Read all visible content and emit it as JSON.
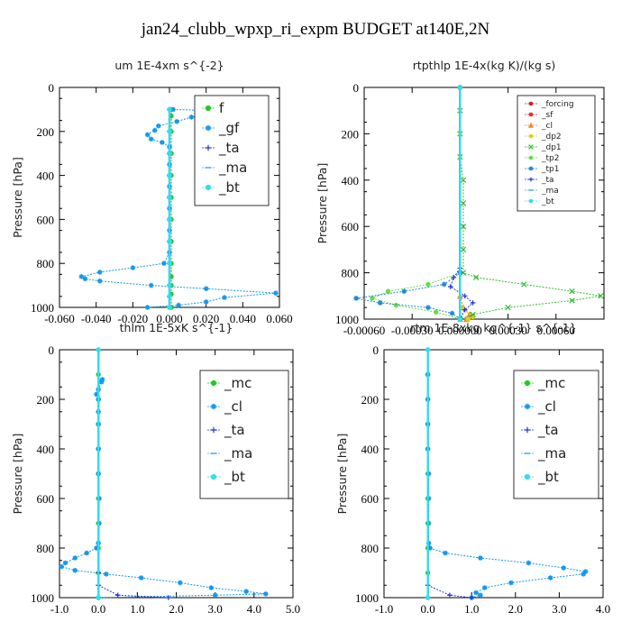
{
  "figure_title": "jan24_clubb_wpxp_ri_expm  BUDGET at140E,2N",
  "chart_data": [
    {
      "type": "line",
      "title": "um   1E-4xm s^{-2}",
      "ylabel": "Pressure [hPa]",
      "xlim": [
        -0.06,
        0.06
      ],
      "ylim": [
        1000,
        0
      ],
      "x_ticks": [
        "-0.060",
        "-0.040",
        "-0.020",
        "0.000",
        "0.020",
        "0.040",
        "0.060"
      ],
      "y_ticks": [
        "0",
        "200",
        "400",
        "600",
        "800",
        "1000"
      ],
      "x_tick_values": [
        -0.06,
        -0.04,
        -0.02,
        0,
        0.02,
        0.04,
        0.06
      ],
      "y_tick_values": [
        0,
        200,
        400,
        600,
        800,
        1000
      ],
      "legend_style": "big",
      "series": [
        {
          "name": "f",
          "color": "#22cc22",
          "marker": "o",
          "pressure": [
            100,
            130,
            200,
            300,
            400,
            500,
            600,
            700,
            800,
            860,
            900,
            940,
            1000
          ],
          "values": [
            0.001,
            0.001,
            0.001,
            0.001,
            0.001,
            0.001,
            0.001,
            0.001,
            0.001,
            0.001,
            0.001,
            0.001,
            0.001
          ]
        },
        {
          "name": "_gf",
          "color": "#1199ee",
          "marker": "*",
          "pressure": [
            100,
            105,
            115,
            125,
            135,
            155,
            175,
            195,
            215,
            235,
            250,
            270,
            300,
            350,
            400,
            450,
            500,
            550,
            600,
            650,
            700,
            750,
            800,
            820,
            840,
            860,
            870,
            880,
            900,
            915,
            935,
            955,
            975,
            990,
            1000
          ],
          "values": [
            0.002,
            0.021,
            0.024,
            0.02,
            0.012,
            0.004,
            -0.006,
            -0.008,
            -0.012,
            -0.01,
            -0.004,
            0.0,
            0.0,
            0.0,
            0.0,
            0.0,
            0.0,
            0.0,
            0.0,
            0.0,
            0.0,
            0.0,
            -0.003,
            -0.02,
            -0.038,
            -0.048,
            -0.046,
            -0.038,
            -0.01,
            0.02,
            0.058,
            0.03,
            0.02,
            0.005,
            -0.012
          ]
        },
        {
          "name": "_ta",
          "color": "#2233cc",
          "marker": "+",
          "pressure": [
            100,
            200,
            300,
            400,
            500,
            600,
            700,
            800,
            900,
            950,
            1000
          ],
          "values": [
            0,
            0,
            0,
            0,
            0,
            0,
            0,
            0,
            0,
            0,
            0
          ]
        },
        {
          "name": "_ma",
          "color": "#44aaee",
          "marker": "-",
          "pressure": [
            100,
            200,
            300,
            400,
            500,
            600,
            700,
            800,
            900,
            950,
            1000
          ],
          "values": [
            0,
            0,
            0,
            0,
            0,
            0,
            0,
            0,
            0,
            0,
            0
          ]
        },
        {
          "name": "_bt",
          "color": "#33ddee",
          "marker": "o",
          "pressure": [
            100,
            200,
            300,
            400,
            500,
            600,
            700,
            800,
            900,
            950,
            1000
          ],
          "values": [
            0,
            0,
            0,
            0,
            0,
            0,
            0,
            0,
            0,
            0,
            0
          ]
        }
      ]
    },
    {
      "type": "line",
      "title": "rtpthlp   1E-4x(kg K)/(kg s)",
      "ylabel": "Pressure [hPa]",
      "xlim": [
        -0.0006,
        0.0009
      ],
      "ylim": [
        1000,
        0
      ],
      "x_ticks": [
        "-0.00060",
        "-0.00030",
        "0.000000",
        "0.00030",
        "0.00060"
      ],
      "y_ticks": [
        "0",
        "200",
        "400",
        "600",
        "800",
        "1000"
      ],
      "x_tick_values": [
        -0.0006,
        -0.0003,
        0,
        0.0003,
        0.0006
      ],
      "y_tick_values": [
        0,
        200,
        400,
        600,
        800,
        1000
      ],
      "legend_style": "small",
      "series": [
        {
          "name": "_forcing",
          "color": "#cc2222",
          "marker": "o",
          "pressure": [
            0,
            1000
          ],
          "values": [
            0,
            0
          ]
        },
        {
          "name": "_sf",
          "color": "#dd3333",
          "marker": "*",
          "pressure": [
            0,
            1000
          ],
          "values": [
            0,
            0
          ]
        },
        {
          "name": "_cl",
          "color": "#ee8822",
          "marker": "^",
          "pressure": [
            900,
            950,
            980,
            1000
          ],
          "values": [
            0,
            2e-05,
            6e-05,
            4e-05
          ]
        },
        {
          "name": "_dp2",
          "color": "#ddcc22",
          "marker": "o",
          "pressure": [
            950,
            990,
            1000
          ],
          "values": [
            1e-05,
            8e-05,
            5e-05
          ]
        },
        {
          "name": "_dp1",
          "color": "#33bb33",
          "marker": "x",
          "pressure": [
            100,
            200,
            300,
            400,
            500,
            600,
            700,
            800,
            820,
            850,
            880,
            900,
            920,
            950,
            980,
            1000
          ],
          "values": [
            0,
            0,
            0,
            2e-05,
            2e-05,
            2e-05,
            2e-05,
            2e-05,
            0.0001,
            0.0004,
            0.0007,
            0.00088,
            0.0007,
            0.0003,
            8e-05,
            0
          ]
        },
        {
          "name": "_tp2",
          "color": "#66dd44",
          "marker": "o",
          "pressure": [
            800,
            850,
            880,
            910,
            940,
            970,
            1000
          ],
          "values": [
            0,
            -0.0002,
            -0.00045,
            -0.00055,
            -0.0004,
            -0.00015,
            0
          ]
        },
        {
          "name": "_tp1",
          "color": "#2288dd",
          "marker": "*",
          "pressure": [
            800,
            850,
            880,
            910,
            930,
            950,
            975,
            1000
          ],
          "values": [
            0,
            -0.0001,
            -0.00035,
            -0.00065,
            -0.0005,
            -0.0002,
            -5e-05,
            0
          ]
        },
        {
          "name": "_ta",
          "color": "#2233cc",
          "marker": "+",
          "pressure": [
            780,
            820,
            860,
            900,
            930,
            960,
            1000
          ],
          "values": [
            0,
            -4e-05,
            -6e-05,
            3e-05,
            8e-05,
            3e-05,
            0
          ]
        },
        {
          "name": "_ma",
          "color": "#44aaee",
          "marker": "-",
          "pressure": [
            0,
            1000
          ],
          "values": [
            0,
            0
          ]
        },
        {
          "name": "_bt",
          "color": "#33ddee",
          "marker": "o",
          "pressure": [
            0,
            1000
          ],
          "values": [
            0,
            0
          ]
        }
      ]
    },
    {
      "type": "line",
      "title": "thlm   1E-5xK s^{-1}",
      "ylabel": "Pressure [hPa]",
      "xlim": [
        -1.0,
        5.0
      ],
      "ylim": [
        1000,
        0
      ],
      "x_ticks": [
        "-1.0",
        "0.0",
        "1.0",
        "2.0",
        "3.0",
        "4.0",
        "5.0"
      ],
      "y_ticks": [
        "0",
        "200",
        "400",
        "600",
        "800",
        "1000"
      ],
      "x_tick_values": [
        -1,
        0,
        1,
        2,
        3,
        4,
        5
      ],
      "y_tick_values": [
        0,
        200,
        400,
        600,
        800,
        1000
      ],
      "legend_style": "big",
      "series": [
        {
          "name": "_mc",
          "color": "#22cc22",
          "marker": "o",
          "pressure": [
            0,
            100,
            200,
            300,
            400,
            500,
            600,
            700,
            800,
            900,
            1000
          ],
          "values": [
            0,
            0,
            0,
            0,
            0,
            0,
            0,
            0,
            0,
            0,
            0
          ]
        },
        {
          "name": "_cl",
          "color": "#1199ee",
          "marker": "*",
          "pressure": [
            120,
            130,
            160,
            180,
            200,
            250,
            300,
            400,
            500,
            600,
            700,
            780,
            800,
            820,
            840,
            860,
            875,
            890,
            905,
            920,
            940,
            960,
            975,
            985,
            990,
            1000
          ],
          "values": [
            0.1,
            0.08,
            0.0,
            -0.05,
            0.0,
            0.0,
            0.0,
            0.0,
            0.0,
            0.02,
            0.02,
            0.0,
            -0.05,
            -0.3,
            -0.6,
            -0.85,
            -0.95,
            -0.6,
            0.2,
            1.1,
            2.1,
            2.9,
            3.8,
            4.3,
            3.0,
            0.0
          ]
        },
        {
          "name": "_ta",
          "color": "#2233cc",
          "marker": "+",
          "pressure": [
            900,
            950,
            990,
            1000
          ],
          "values": [
            0,
            0,
            0.5,
            1.8
          ]
        },
        {
          "name": "_ma",
          "color": "#44aaee",
          "marker": "-",
          "pressure": [
            0,
            1000
          ],
          "values": [
            0,
            0
          ]
        },
        {
          "name": "_bt",
          "color": "#33ddee",
          "marker": "o",
          "pressure": [
            0,
            1000
          ],
          "values": [
            0,
            0
          ]
        }
      ]
    },
    {
      "type": "line",
      "title": "rtm   1E-8xkg kg^{-1} s^{-1}",
      "ylabel": "Pressure [hPa]",
      "xlim": [
        -1.0,
        4.0
      ],
      "ylim": [
        1000,
        0
      ],
      "x_ticks": [
        "-1.0",
        "0.0",
        "1.0",
        "2.0",
        "3.0",
        "4.0"
      ],
      "y_ticks": [
        "0",
        "200",
        "400",
        "600",
        "800",
        "1000"
      ],
      "x_tick_values": [
        -1,
        0,
        1,
        2,
        3,
        4
      ],
      "y_tick_values": [
        0,
        200,
        400,
        600,
        800,
        1000
      ],
      "legend_style": "big",
      "series": [
        {
          "name": "_mc",
          "color": "#22cc22",
          "marker": "o",
          "pressure": [
            0,
            100,
            200,
            300,
            400,
            500,
            600,
            700,
            800,
            900,
            1000
          ],
          "values": [
            0,
            0,
            0,
            0,
            0,
            0,
            0,
            0,
            0,
            0,
            0
          ]
        },
        {
          "name": "_cl",
          "color": "#1199ee",
          "marker": "*",
          "pressure": [
            100,
            200,
            300,
            400,
            500,
            600,
            700,
            780,
            800,
            820,
            840,
            860,
            880,
            895,
            905,
            920,
            940,
            960,
            980,
            990,
            1000
          ],
          "values": [
            0,
            0,
            0,
            0,
            0.02,
            0.02,
            0.02,
            0.02,
            0.05,
            0.4,
            1.2,
            2.3,
            3.1,
            3.6,
            3.55,
            2.8,
            1.9,
            1.3,
            1.1,
            1.2,
            1.0
          ]
        },
        {
          "name": "_ta",
          "color": "#2233cc",
          "marker": "+",
          "pressure": [
            950,
            990,
            1000
          ],
          "values": [
            0,
            0.5,
            1.0
          ]
        },
        {
          "name": "_ma",
          "color": "#44aaee",
          "marker": "-",
          "pressure": [
            0,
            1000
          ],
          "values": [
            0,
            0
          ]
        },
        {
          "name": "_bt",
          "color": "#33ddee",
          "marker": "o",
          "pressure": [
            0,
            1000
          ],
          "values": [
            0,
            0
          ]
        }
      ]
    }
  ]
}
